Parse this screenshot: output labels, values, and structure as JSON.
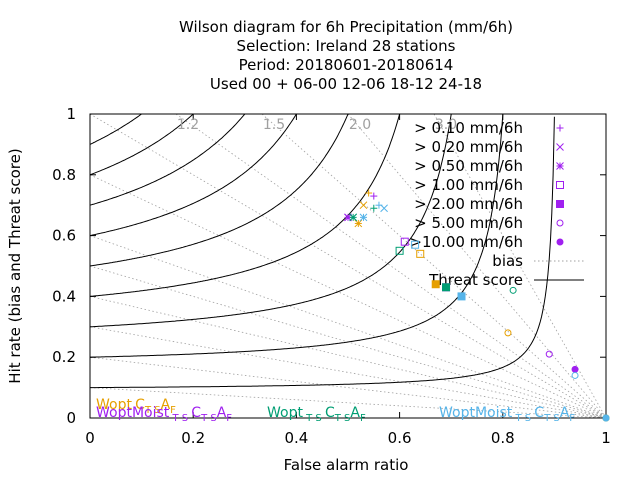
{
  "chart_data": {
    "type": "scatter",
    "title_lines": [
      "Wilson diagram  for 6h Precipitation (mm/6h)",
      "Selection: Ireland      28 stations",
      "Period: 20180601-20180614",
      "Used  00 + 06-00 12-06 18-12 24-18"
    ],
    "xlabel": "False alarm ratio",
    "ylabel": "Hit rate (bias and Threat score)",
    "xlim": [
      0,
      1
    ],
    "ylim": [
      0,
      1
    ],
    "xticks": [
      "0",
      "0.2",
      "0.4",
      "0.6",
      "0.8",
      "1"
    ],
    "yticks": [
      "0",
      "0.2",
      "0.4",
      "0.6",
      "0.8",
      "1"
    ],
    "bias_labels": [
      "1.2",
      "1.5",
      "2.0",
      "3.0"
    ],
    "bias_values": [
      1.2,
      1.5,
      2.0,
      3.0,
      1.0,
      0.8,
      0.6,
      0.5,
      0.4,
      0.3,
      0.2,
      0.1
    ],
    "threat_values": [
      0.1,
      0.2,
      0.3,
      0.4,
      0.5,
      0.6,
      0.7,
      0.8,
      0.9
    ],
    "legend": [
      {
        "label": "> 0.10 mm/6h",
        "marker": "plus",
        "color": "#a020f0"
      },
      {
        "label": "> 0.20 mm/6h",
        "marker": "cross",
        "color": "#a020f0"
      },
      {
        "label": "> 0.50 mm/6h",
        "marker": "star",
        "color": "#a020f0"
      },
      {
        "label": "> 1.00 mm/6h",
        "marker": "square-open",
        "color": "#a020f0"
      },
      {
        "label": "> 2.00 mm/6h",
        "marker": "square-filled",
        "color": "#a020f0"
      },
      {
        "label": "> 5.00 mm/6h",
        "marker": "circle-open",
        "color": "#a020f0"
      },
      {
        "label": ">10.00 mm/6h",
        "marker": "circle-filled",
        "color": "#a020f0"
      },
      {
        "label": "bias",
        "marker": "line-dotted",
        "color": "#a0a0a0"
      },
      {
        "label": "Threat score",
        "marker": "line-solid",
        "color": "#000000"
      }
    ],
    "series": [
      {
        "name": "Wopt",
        "color": "#e69f00",
        "points": [
          {
            "x": 0.54,
            "y": 0.74,
            "m": "plus"
          },
          {
            "x": 0.53,
            "y": 0.7,
            "m": "cross"
          },
          {
            "x": 0.52,
            "y": 0.64,
            "m": "star"
          },
          {
            "x": 0.64,
            "y": 0.54,
            "m": "square-open"
          },
          {
            "x": 0.67,
            "y": 0.44,
            "m": "square-filled"
          },
          {
            "x": 0.81,
            "y": 0.28,
            "m": "circle-open"
          },
          {
            "x": 1.0,
            "y": 0.0,
            "m": "circle-filled"
          }
        ]
      },
      {
        "name": "WoptMoist",
        "color": "#a020f0",
        "points": [
          {
            "x": 0.55,
            "y": 0.73,
            "m": "plus"
          },
          {
            "x": 0.5,
            "y": 0.66,
            "m": "cross"
          },
          {
            "x": 0.5,
            "y": 0.66,
            "m": "star"
          },
          {
            "x": 0.61,
            "y": 0.58,
            "m": "square-open"
          },
          {
            "x": 0.69,
            "y": 0.43,
            "m": "square-filled"
          },
          {
            "x": 0.89,
            "y": 0.21,
            "m": "circle-open"
          },
          {
            "x": 0.94,
            "y": 0.16,
            "m": "circle-filled"
          }
        ]
      },
      {
        "name": "Wopt",
        "color": "#009e73",
        "points": [
          {
            "x": 0.55,
            "y": 0.69,
            "m": "plus"
          },
          {
            "x": 0.51,
            "y": 0.66,
            "m": "cross"
          },
          {
            "x": 0.51,
            "y": 0.66,
            "m": "star"
          },
          {
            "x": 0.6,
            "y": 0.55,
            "m": "square-open"
          },
          {
            "x": 0.69,
            "y": 0.43,
            "m": "square-filled"
          },
          {
            "x": 0.82,
            "y": 0.42,
            "m": "circle-open"
          },
          {
            "x": 1.0,
            "y": 0.0,
            "m": "circle-filled"
          }
        ]
      },
      {
        "name": "WoptMoist",
        "color": "#56b4e9",
        "points": [
          {
            "x": 0.56,
            "y": 0.7,
            "m": "plus"
          },
          {
            "x": 0.57,
            "y": 0.69,
            "m": "cross"
          },
          {
            "x": 0.53,
            "y": 0.66,
            "m": "star"
          },
          {
            "x": 0.63,
            "y": 0.57,
            "m": "square-open"
          },
          {
            "x": 0.72,
            "y": 0.4,
            "m": "square-filled"
          },
          {
            "x": 0.94,
            "y": 0.14,
            "m": "circle-open"
          },
          {
            "x": 1.0,
            "y": 0.0,
            "m": "circle-filled"
          }
        ]
      }
    ],
    "bottom_labels": [
      {
        "base": "Wopt",
        "sub": "  ",
        "mid": "C",
        "sub2": "T S",
        "end": "A",
        "sub3": "F",
        "color": "#e69f00"
      },
      {
        "base": "WoptMoist",
        "sub": " T S ",
        "mid": "C",
        "sub2": "T S",
        "end": "A",
        "sub3": "F",
        "color": "#a020f0"
      },
      {
        "base": "Wopt",
        "sub": " T S ",
        "mid": "C",
        "sub2": "T S",
        "end": "A",
        "sub3": "F",
        "color": "#009e73"
      },
      {
        "base": "WoptMoist",
        "sub": " T S ",
        "mid": "C",
        "sub2": "T S",
        "end": "A",
        "sub3": "F",
        "color": "#56b4e9"
      }
    ]
  }
}
